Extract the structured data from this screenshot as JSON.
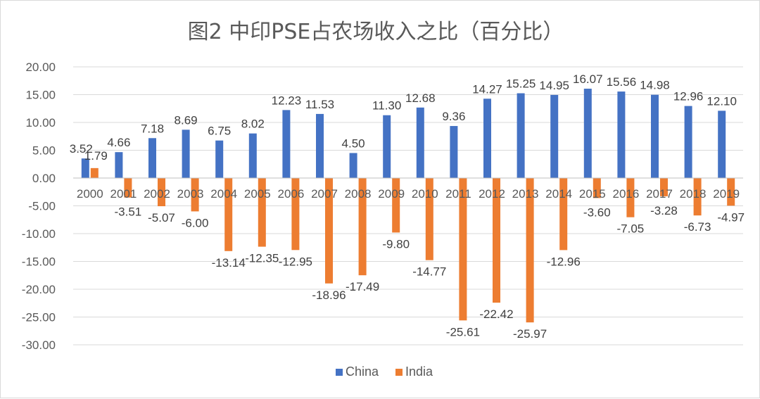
{
  "chart_data": {
    "type": "bar",
    "title": "图2 中印PSE占农场收入之比（百分比）",
    "categories": [
      "2000",
      "2001",
      "2002",
      "2003",
      "2004",
      "2005",
      "2006",
      "2007",
      "2008",
      "2009",
      "2010",
      "2011",
      "2012",
      "2013",
      "2014",
      "2015",
      "2016",
      "2017",
      "2018",
      "2019"
    ],
    "series": [
      {
        "name": "China",
        "color": "#4472C4",
        "values": [
          3.52,
          4.66,
          7.18,
          8.69,
          6.75,
          8.02,
          12.23,
          11.53,
          4.5,
          11.3,
          12.68,
          9.36,
          14.27,
          15.25,
          14.95,
          16.07,
          15.56,
          14.98,
          12.96,
          12.1
        ]
      },
      {
        "name": "India",
        "color": "#ED7D31",
        "values": [
          1.79,
          -3.51,
          -5.07,
          -6.0,
          -13.14,
          -12.35,
          -12.95,
          -18.96,
          -17.49,
          -9.8,
          -14.77,
          -25.61,
          -22.42,
          -25.97,
          -12.96,
          -3.6,
          -7.05,
          -3.28,
          -6.73,
          -4.97
        ]
      }
    ],
    "ylim": [
      -30,
      20
    ],
    "yticks": [
      "20.00",
      "15.00",
      "10.00",
      "5.00",
      "0.00",
      "-5.00",
      "-10.00",
      "-15.00",
      "-20.00",
      "-25.00",
      "-30.00"
    ],
    "grid": true,
    "data_labels": true,
    "legend_position": "bottom"
  }
}
